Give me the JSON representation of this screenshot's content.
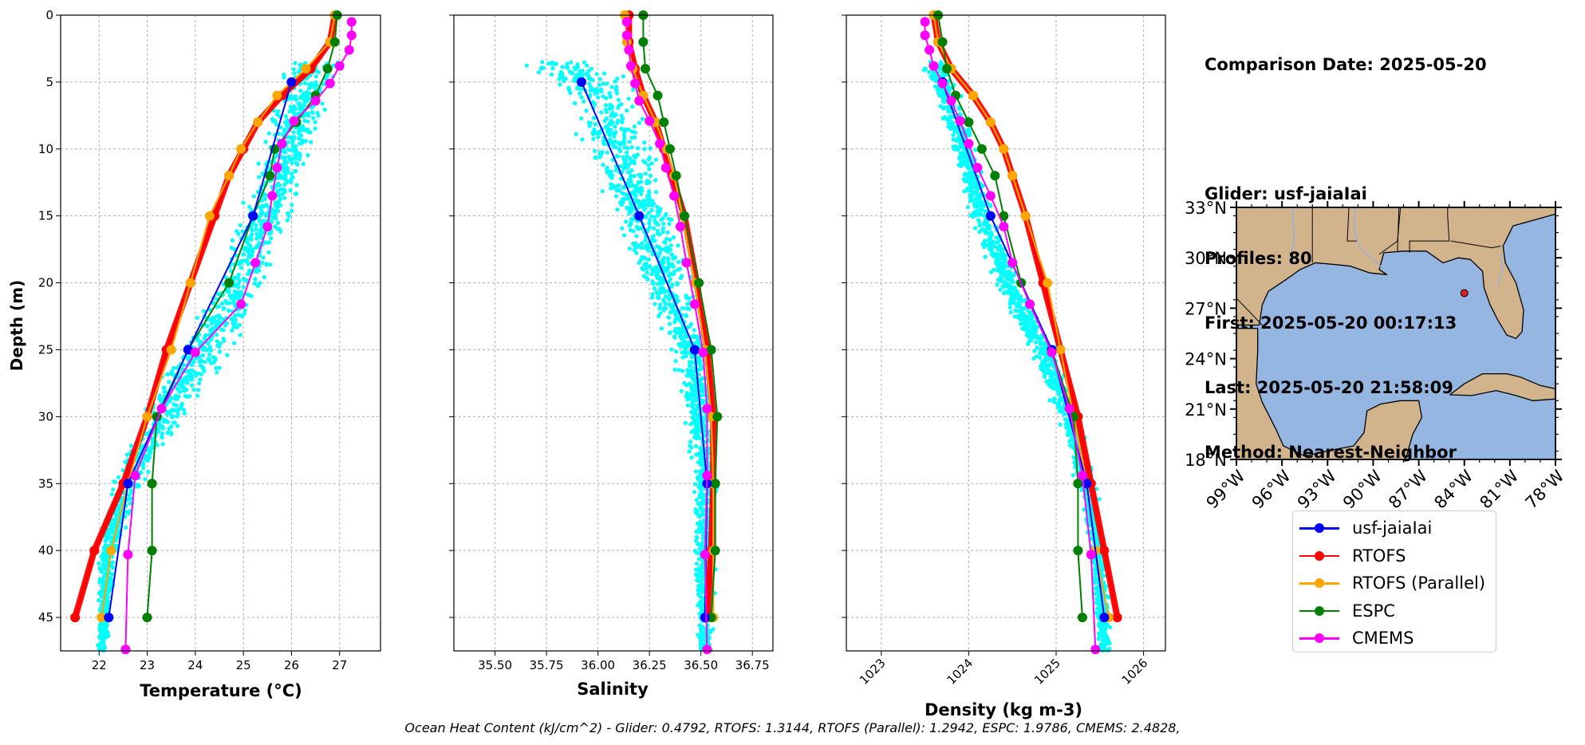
{
  "info": {
    "comparison_date": "Comparison Date: 2025-05-20",
    "glider": "Glider: usf-jaiaIai",
    "profiles": "Profiles: 80",
    "first": "First: 2025-05-20 00:17:13",
    "last": "Last: 2025-05-20 21:58:09",
    "method": "Method: Nearest-Neighbor"
  },
  "footer": "Ocean Heat Content (kJ/cm^2) - Glider: 0.4792,  RTOFS: 1.3144,  RTOFS (Parallel): 1.2942,  ESPC: 1.9786,  CMEMS: 2.4828,",
  "map": {
    "lat_ticks": [
      "33°N",
      "30°N",
      "27°N",
      "24°N",
      "21°N",
      "18°N"
    ],
    "lon_ticks": [
      "99°W",
      "96°W",
      "93°W",
      "90°W",
      "87°W",
      "84°W",
      "81°W",
      "78°W"
    ],
    "lat_range": [
      18,
      33
    ],
    "lon_range": [
      -99,
      -78
    ],
    "glider_location": {
      "lon": -84.0,
      "lat": 27.9
    },
    "land_color": "#d2b48c",
    "ocean_color": "#96b6e2"
  },
  "chart_data": [
    {
      "type": "line",
      "xlabel": "Temperature (°C)",
      "ylabel": "Depth (m)",
      "xlim": [
        21.2,
        27.85
      ],
      "ylim": [
        47.5,
        0
      ],
      "x_ticks": [
        "22",
        "23",
        "24",
        "25",
        "26",
        "27"
      ],
      "y_ticks": [
        "0",
        "5",
        "10",
        "15",
        "20",
        "25",
        "30",
        "35",
        "40",
        "45"
      ],
      "scatter": {
        "name": "glider observations",
        "color": "#00ffff"
      },
      "series": [
        {
          "name": "RTOFS",
          "color": "#ff0000",
          "depth": [
            0,
            2,
            4,
            6,
            8,
            10,
            12,
            15,
            20,
            25,
            30,
            35,
            40,
            45
          ],
          "values": [
            26.9,
            26.8,
            26.4,
            25.8,
            25.3,
            25.0,
            24.7,
            24.4,
            23.9,
            23.4,
            23.0,
            22.5,
            21.9,
            21.5
          ]
        },
        {
          "name": "RTOFS (Parallel)",
          "color": "#ffa500",
          "depth": [
            0,
            2,
            4,
            6,
            8,
            10,
            12,
            15,
            20,
            25,
            30,
            35,
            40,
            45
          ],
          "values": [
            26.9,
            26.8,
            26.3,
            25.7,
            25.3,
            24.95,
            24.7,
            24.3,
            23.9,
            23.5,
            23.0,
            22.6,
            22.25,
            22.05
          ]
        },
        {
          "name": "ESPC",
          "color": "#008000",
          "depth": [
            0,
            2,
            4,
            6,
            8,
            10,
            12,
            15,
            20,
            25,
            30,
            35,
            40,
            45
          ],
          "values": [
            26.95,
            26.9,
            26.75,
            26.5,
            26.1,
            25.65,
            25.55,
            25.2,
            24.7,
            23.85,
            23.2,
            23.1,
            23.1,
            23.0
          ]
        },
        {
          "name": "usf-jaiaIai",
          "color": "#0000ff",
          "depth": [
            5,
            15,
            25,
            35,
            45
          ],
          "values": [
            26.0,
            25.2,
            23.85,
            22.6,
            22.2
          ]
        },
        {
          "name": "CMEMS",
          "color": "#ff00ff",
          "depth": [
            0.5,
            1.5,
            2.6,
            3.8,
            5.1,
            6.4,
            7.9,
            9.6,
            11.4,
            13.5,
            15.8,
            18.5,
            21.6,
            25.2,
            29.4,
            34.4,
            40.3,
            47.4
          ],
          "values": [
            27.25,
            27.25,
            27.2,
            27.0,
            26.8,
            26.5,
            26.05,
            25.8,
            25.7,
            25.6,
            25.5,
            25.25,
            24.95,
            24.0,
            23.3,
            22.75,
            22.6,
            22.55
          ]
        }
      ]
    },
    {
      "type": "line",
      "xlabel": "Salinity",
      "xlim": [
        35.3,
        36.85
      ],
      "ylim": [
        47.5,
        0
      ],
      "x_ticks": [
        "35.50",
        "35.75",
        "36.00",
        "36.25",
        "36.50",
        "36.75"
      ],
      "scatter": {
        "name": "glider observations",
        "color": "#00ffff"
      },
      "series": [
        {
          "name": "RTOFS",
          "color": "#ff0000",
          "depth": [
            0,
            2,
            4,
            6,
            8,
            10,
            12,
            15,
            20,
            25,
            30,
            35,
            40,
            45
          ],
          "values": [
            36.15,
            36.15,
            36.18,
            36.22,
            36.28,
            36.32,
            36.36,
            36.42,
            36.48,
            36.53,
            36.56,
            36.56,
            36.55,
            36.53
          ]
        },
        {
          "name": "RTOFS (Parallel)",
          "color": "#ffa500",
          "depth": [
            0,
            2,
            4,
            6,
            8,
            10,
            12,
            15,
            20,
            25,
            30,
            35,
            40,
            45
          ],
          "values": [
            36.13,
            36.14,
            36.17,
            36.22,
            36.28,
            36.33,
            36.37,
            36.41,
            36.47,
            36.52,
            36.55,
            36.56,
            36.56,
            36.56
          ]
        },
        {
          "name": "ESPC",
          "color": "#008000",
          "depth": [
            0,
            2,
            4,
            6,
            8,
            10,
            12,
            15,
            20,
            25,
            30,
            35,
            40,
            45
          ],
          "values": [
            36.22,
            36.22,
            36.23,
            36.29,
            36.32,
            36.35,
            36.38,
            36.42,
            36.49,
            36.55,
            36.58,
            36.57,
            36.57,
            36.55
          ]
        },
        {
          "name": "usf-jaiaIai",
          "color": "#0000ff",
          "depth": [
            5,
            15,
            25,
            35,
            45
          ],
          "values": [
            35.92,
            36.2,
            36.47,
            36.53,
            36.52
          ]
        },
        {
          "name": "CMEMS",
          "color": "#ff00ff",
          "depth": [
            0.5,
            1.5,
            2.6,
            3.8,
            5.1,
            6.4,
            7.9,
            9.6,
            11.4,
            13.5,
            15.8,
            18.5,
            21.6,
            25.2,
            29.4,
            34.4,
            40.3,
            47.4
          ],
          "values": [
            36.14,
            36.14,
            36.15,
            36.16,
            36.18,
            36.2,
            36.25,
            36.3,
            36.33,
            36.37,
            36.4,
            36.43,
            36.47,
            36.51,
            36.53,
            36.53,
            36.52,
            36.53
          ]
        }
      ]
    },
    {
      "type": "line",
      "xlabel": "Density (kg m-3)",
      "xlim": [
        1022.6,
        1026.25
      ],
      "ylim": [
        47.5,
        0
      ],
      "x_ticks": [
        "1023",
        "1024",
        "1025",
        "1026"
      ],
      "scatter": {
        "name": "glider observations",
        "color": "#00ffff"
      },
      "series": [
        {
          "name": "RTOFS",
          "color": "#ff0000",
          "depth": [
            0,
            2,
            4,
            6,
            8,
            10,
            12,
            15,
            20,
            25,
            30,
            35,
            40,
            45
          ],
          "values": [
            1023.6,
            1023.65,
            1023.8,
            1024.05,
            1024.25,
            1024.4,
            1024.5,
            1024.65,
            1024.85,
            1025.05,
            1025.25,
            1025.4,
            1025.55,
            1025.7
          ]
        },
        {
          "name": "RTOFS (Parallel)",
          "color": "#ffa500",
          "depth": [
            0,
            2,
            4,
            6,
            8,
            10,
            12,
            15,
            20,
            25,
            30,
            35,
            40,
            45
          ],
          "values": [
            1023.6,
            1023.65,
            1023.8,
            1024.05,
            1024.25,
            1024.4,
            1024.5,
            1024.65,
            1024.9,
            1025.05,
            1025.2,
            1025.35,
            1025.45,
            1025.6
          ]
        },
        {
          "name": "ESPC",
          "color": "#008000",
          "depth": [
            0,
            2,
            4,
            6,
            8,
            10,
            12,
            15,
            20,
            25,
            30,
            35,
            40,
            45
          ],
          "values": [
            1023.65,
            1023.7,
            1023.75,
            1023.85,
            1024.0,
            1024.15,
            1024.3,
            1024.4,
            1024.6,
            1024.95,
            1025.2,
            1025.25,
            1025.25,
            1025.3
          ]
        },
        {
          "name": "usf-jaiaIai",
          "color": "#0000ff",
          "depth": [
            5,
            15,
            25,
            35,
            45
          ],
          "values": [
            1023.7,
            1024.25,
            1024.95,
            1025.35,
            1025.55
          ]
        },
        {
          "name": "CMEMS",
          "color": "#ff00ff",
          "depth": [
            0.5,
            1.5,
            2.6,
            3.8,
            5.1,
            6.4,
            7.9,
            9.6,
            11.4,
            13.5,
            15.8,
            18.5,
            21.6,
            25.2,
            29.4,
            34.4,
            40.3,
            47.4
          ],
          "values": [
            1023.5,
            1023.5,
            1023.55,
            1023.6,
            1023.7,
            1023.8,
            1023.9,
            1024.0,
            1024.1,
            1024.25,
            1024.4,
            1024.5,
            1024.7,
            1024.95,
            1025.15,
            1025.3,
            1025.4,
            1025.45
          ]
        }
      ]
    }
  ],
  "legend": [
    {
      "label": "usf-jaiaIai",
      "color": "#0000ff"
    },
    {
      "label": "RTOFS",
      "color": "#ff0000"
    },
    {
      "label": "RTOFS (Parallel)",
      "color": "#ffa500"
    },
    {
      "label": "ESPC",
      "color": "#008000"
    },
    {
      "label": "CMEMS",
      "color": "#ff00ff"
    }
  ]
}
